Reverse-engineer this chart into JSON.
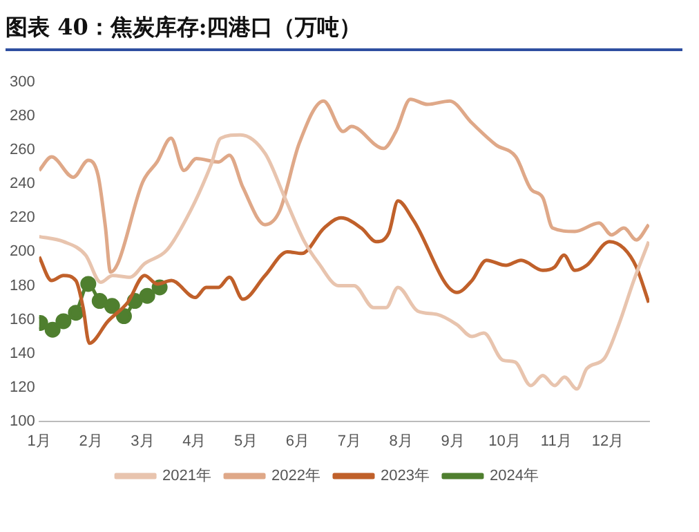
{
  "chart_data": {
    "type": "line",
    "title": "图表 40：焦炭库存:四港口（万吨）",
    "xlim": [
      1,
      12.8
    ],
    "xticks": [
      {
        "value": 1,
        "label": "1月"
      },
      {
        "value": 2,
        "label": "2月"
      },
      {
        "value": 3,
        "label": "3月"
      },
      {
        "value": 4,
        "label": "4月"
      },
      {
        "value": 5,
        "label": "5月"
      },
      {
        "value": 6,
        "label": "6月"
      },
      {
        "value": 7,
        "label": "7月"
      },
      {
        "value": 8,
        "label": "8月"
      },
      {
        "value": 9,
        "label": "9月"
      },
      {
        "value": 10,
        "label": "10月"
      },
      {
        "value": 11,
        "label": "11月"
      },
      {
        "value": 12,
        "label": "12月"
      }
    ],
    "ylim": [
      100,
      300
    ],
    "yticks": [
      100,
      120,
      140,
      160,
      180,
      200,
      220,
      240,
      260,
      280,
      300
    ],
    "grid": false,
    "legend": "bottom",
    "line_style": "solid",
    "series": [
      {
        "name": "2021年",
        "color": "#e8c4ae",
        "marker": "none",
        "x": [
          1,
          1.47,
          1.9,
          2.19,
          2.42,
          2.76,
          3.04,
          3.47,
          3.94,
          4.32,
          4.51,
          4.89,
          5.37,
          5.75,
          6.13,
          6.41,
          6.79,
          7.09,
          7.47,
          7.71,
          7.94,
          8.32,
          8.7,
          9.08,
          9.37,
          9.6,
          9.97,
          10.2,
          10.51,
          10.74,
          10.97,
          11.16,
          11.4,
          11.59,
          11.93,
          12.21,
          12.5,
          12.79
        ],
        "values": [
          209,
          206,
          198,
          182,
          186,
          185,
          193,
          201,
          225,
          251,
          267,
          269,
          258,
          232,
          206,
          193,
          180,
          180,
          167,
          167,
          179,
          165,
          163,
          157,
          150,
          152,
          136,
          135,
          121,
          127,
          121,
          126,
          119,
          131,
          137,
          157,
          183,
          206
        ]
      },
      {
        "name": "2022年",
        "color": "#dfa888",
        "marker": "none",
        "x": [
          1,
          1.24,
          1.66,
          1.95,
          2.14,
          2.28,
          2.38,
          2.52,
          3,
          3.28,
          3.55,
          3.8,
          4.04,
          4.47,
          4.68,
          4.94,
          5.37,
          5.65,
          6.03,
          6.5,
          6.88,
          7.04,
          7.66,
          7.9,
          8.18,
          8.51,
          8.94,
          9.37,
          9.84,
          10.22,
          10.51,
          10.74,
          10.93,
          11.36,
          11.83,
          12.07,
          12.31,
          12.55,
          12.79
        ],
        "values": [
          248,
          256,
          244,
          254,
          245,
          215,
          188,
          193,
          241,
          253,
          267,
          248,
          255,
          253,
          257,
          238,
          216,
          224,
          264,
          289,
          271,
          274,
          261,
          271,
          290,
          287,
          289,
          276,
          263,
          256,
          237,
          232,
          214,
          212,
          217,
          210,
          214,
          207,
          216
        ]
      },
      {
        "name": "2023年",
        "color": "#c0602a",
        "marker": "none",
        "x": [
          1,
          1.24,
          1.47,
          1.71,
          1.85,
          1.97,
          2.33,
          2.71,
          3.04,
          3.28,
          3.56,
          4.02,
          4.23,
          4.47,
          4.68,
          4.94,
          5.37,
          5.8,
          6.08,
          6.51,
          6.84,
          7.23,
          7.52,
          7.76,
          7.94,
          8.23,
          9.08,
          9.37,
          9.65,
          10.03,
          10.32,
          10.74,
          10.97,
          11.15,
          11.36,
          11.59,
          12.03,
          12.31,
          12.55,
          12.79
        ],
        "values": [
          197,
          183,
          186,
          183,
          167,
          146,
          159,
          170,
          186,
          181,
          183,
          173,
          179,
          179,
          185,
          172,
          186,
          200,
          199,
          214,
          220,
          214,
          206,
          211,
          230,
          219,
          176,
          183,
          195,
          192,
          195,
          189,
          191,
          198,
          189,
          192,
          206,
          202,
          191,
          170
        ]
      },
      {
        "name": "2024年",
        "color": "#4f7f2f",
        "marker": "circle",
        "x": [
          1.02,
          1.26,
          1.47,
          1.71,
          1.95,
          2.17,
          2.41,
          2.64,
          2.85,
          3.09,
          3.33
        ],
        "values": [
          158,
          154,
          159,
          164,
          181,
          171,
          168,
          162,
          171,
          174,
          179
        ]
      }
    ]
  }
}
